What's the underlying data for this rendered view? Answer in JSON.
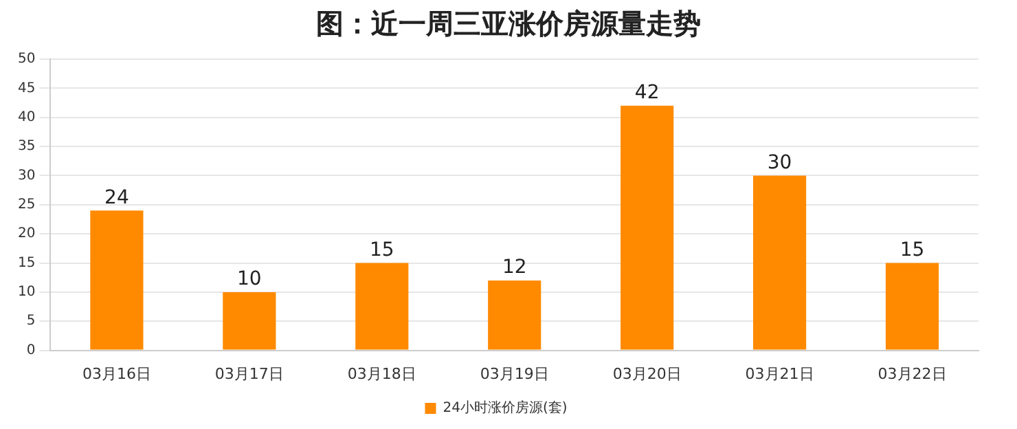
{
  "chart_data": {
    "type": "bar",
    "title": "图：近一周三亚涨价房源量走势",
    "categories": [
      "03月16日",
      "03月17日",
      "03月18日",
      "03月19日",
      "03月20日",
      "03月21日",
      "03月22日"
    ],
    "series": [
      {
        "name": "24小时涨价房源(套)",
        "color": "#ff8a00",
        "values": [
          24,
          10,
          15,
          12,
          42,
          30,
          15
        ]
      }
    ],
    "ylim": [
      0,
      50
    ],
    "yticks": [
      0,
      5,
      10,
      15,
      20,
      25,
      30,
      35,
      40,
      45,
      50
    ],
    "grid": "y",
    "legend": "bottom",
    "data_labels": true
  }
}
